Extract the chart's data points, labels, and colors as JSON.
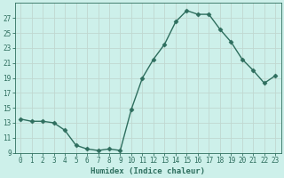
{
  "x": [
    0,
    1,
    2,
    3,
    4,
    5,
    6,
    7,
    8,
    9,
    10,
    11,
    12,
    13,
    14,
    15,
    16,
    17,
    18,
    19,
    20,
    21,
    22,
    23
  ],
  "y": [
    13.5,
    13.2,
    13.2,
    13.0,
    12.0,
    10.0,
    9.5,
    9.3,
    9.5,
    9.3,
    14.8,
    19.0,
    21.5,
    23.5,
    26.5,
    28.0,
    27.5,
    27.5,
    25.5,
    23.8,
    21.5,
    20.0,
    18.3,
    19.3
  ],
  "line_color": "#2e6e5e",
  "marker": "D",
  "marker_size": 2.5,
  "bg_color": "#cdf0ea",
  "grid_color": "#c0d8d0",
  "xlabel": "Humidex (Indice chaleur)",
  "ylim": [
    9,
    29
  ],
  "xlim": [
    -0.5,
    23.5
  ],
  "yticks": [
    9,
    11,
    13,
    15,
    17,
    19,
    21,
    23,
    25,
    27
  ],
  "xticks": [
    0,
    1,
    2,
    3,
    4,
    5,
    6,
    7,
    8,
    9,
    10,
    11,
    12,
    13,
    14,
    15,
    16,
    17,
    18,
    19,
    20,
    21,
    22,
    23
  ],
  "xtick_labels": [
    "0",
    "1",
    "2",
    "3",
    "4",
    "5",
    "6",
    "7",
    "8",
    "9",
    "10",
    "11",
    "12",
    "13",
    "14",
    "15",
    "16",
    "17",
    "18",
    "19",
    "20",
    "21",
    "22",
    "23"
  ],
  "font_color": "#2e6e5e",
  "linewidth": 1.0,
  "label_fontsize": 6.5,
  "tick_fontsize": 5.5
}
